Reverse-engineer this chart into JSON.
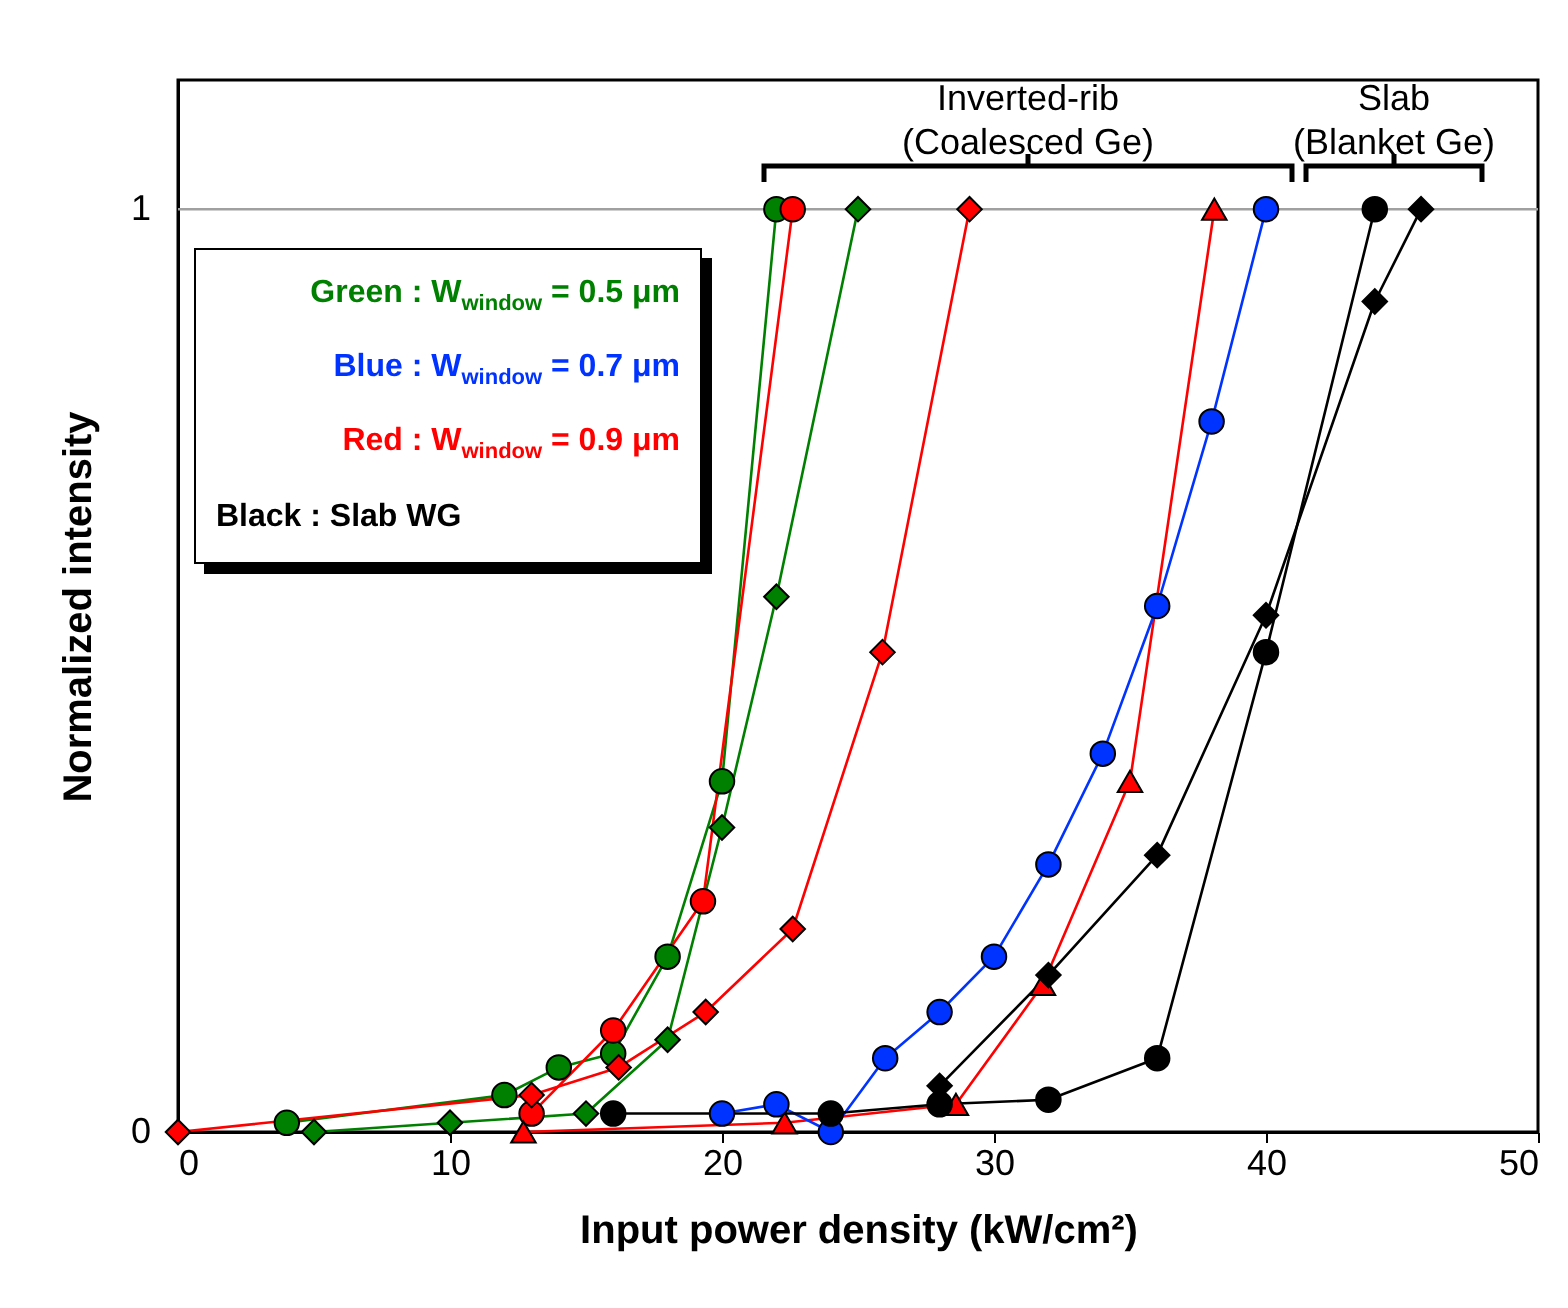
{
  "chart_data": {
    "type": "line",
    "xlabel": "Input power density (kW/cm²)",
    "ylabel": "Normalized intensity",
    "xlim": [
      0,
      50
    ],
    "xticks": [
      0,
      10,
      20,
      30,
      40,
      50
    ],
    "ylim": [
      0,
      1.14
    ],
    "yticks": [
      0,
      1
    ],
    "grid": false,
    "legend": false,
    "ref_lines": [
      {
        "axis": "y",
        "value": 1,
        "color": "#a0a0a0"
      }
    ],
    "annotations": [
      "Inverted-rib\n(Coalesced Ge)",
      "Slab\n(Blanket Ge)",
      "Green : W$_{window}$ = 0.5 μm",
      "Blue : W$_{window}$ = 0.7 μm",
      "Red : W$_{window}$ = 0.9 μm",
      "Black : Slab WG"
    ],
    "series": [
      {
        "color": "#008000",
        "marker": "circle",
        "x": [
          4,
          12,
          14,
          16,
          18,
          20,
          22
        ],
        "values": [
          0.01,
          0.04,
          0.07,
          0.085,
          0.19,
          0.38,
          1
        ]
      },
      {
        "color": "#008000",
        "marker": "diamond",
        "x": [
          5,
          10,
          15,
          18,
          20,
          22,
          25
        ],
        "values": [
          0,
          0.01,
          0.02,
          0.1,
          0.33,
          0.58,
          1
        ]
      },
      {
        "color": "#ff0000",
        "marker": "circle",
        "x": [
          13,
          16,
          19.3,
          22.6
        ],
        "values": [
          0.02,
          0.11,
          0.25,
          1
        ]
      },
      {
        "color": "#ff0000",
        "marker": "diamond",
        "x": [
          0,
          13,
          16.2,
          19.4,
          22.6,
          25.9,
          29.1
        ],
        "values": [
          0,
          0.04,
          0.07,
          0.13,
          0.22,
          0.52,
          1
        ]
      },
      {
        "color": "#ff0000",
        "marker": "triangle",
        "x": [
          12.7,
          22.3,
          28.6,
          31.8,
          35,
          38.1
        ],
        "values": [
          0,
          0.01,
          0.03,
          0.16,
          0.38,
          1
        ]
      },
      {
        "color": "#0033ff",
        "marker": "circle",
        "x": [
          20,
          22,
          24,
          26,
          28,
          30,
          32,
          34,
          36,
          38,
          40
        ],
        "values": [
          0.02,
          0.03,
          0,
          0.08,
          0.13,
          0.19,
          0.29,
          0.41,
          0.57,
          0.77,
          1
        ]
      },
      {
        "color": "#000000",
        "marker": "circle",
        "x": [
          16,
          24,
          28,
          32,
          36,
          40,
          44
        ],
        "values": [
          0.02,
          0.02,
          0.03,
          0.035,
          0.08,
          0.52,
          1
        ]
      },
      {
        "color": "#000000",
        "marker": "diamond",
        "x": [
          28,
          32,
          36,
          40,
          44,
          45.7
        ],
        "values": [
          0.05,
          0.17,
          0.3,
          0.56,
          0.9,
          1
        ]
      }
    ]
  }
}
